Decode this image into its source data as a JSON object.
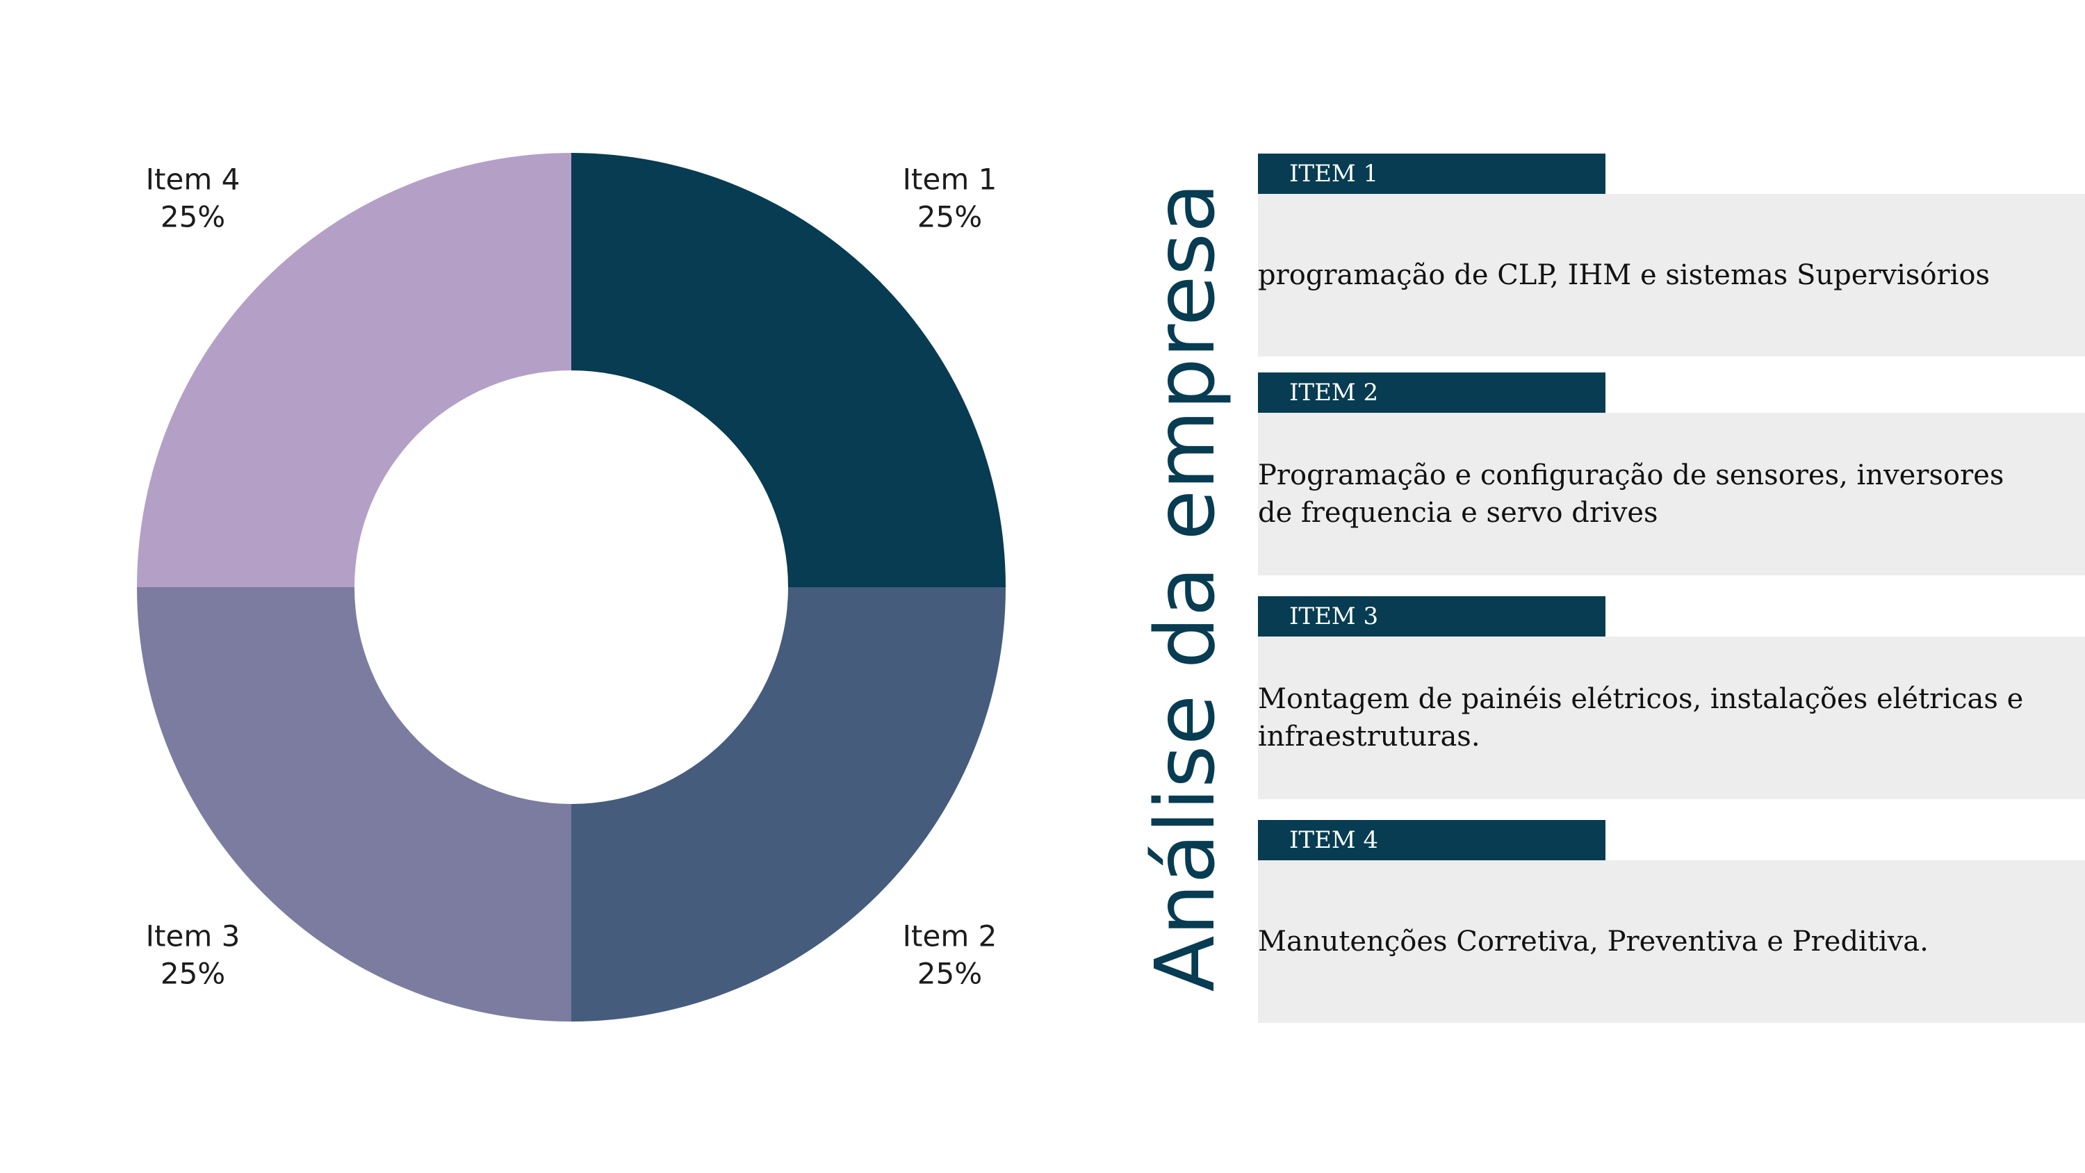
{
  "title": "Análise da empresa",
  "chart_data": {
    "type": "pie",
    "donut": true,
    "categories": [
      "Item 1",
      "Item 2",
      "Item 3",
      "Item 4"
    ],
    "values": [
      25,
      25,
      25,
      25
    ],
    "value_labels": [
      "25%",
      "25%",
      "25%",
      "25%"
    ],
    "colors": [
      "#073c52",
      "#455c7d",
      "#7b7ca0",
      "#b49fc6"
    ]
  },
  "items": [
    {
      "header": "ITEM 1",
      "text": "programação de CLP, IHM e sistemas Supervisórios"
    },
    {
      "header": "ITEM 2",
      "text": "Programação e configuração de sensores, inversores de frequencia e servo drives"
    },
    {
      "header": "ITEM 3",
      "text": "Montagem de painéis elétricos, instalações elétricas e infraestruturas."
    },
    {
      "header": "ITEM 4",
      "text": "Manutenções Corretiva, Preventiva e Preditiva."
    }
  ]
}
